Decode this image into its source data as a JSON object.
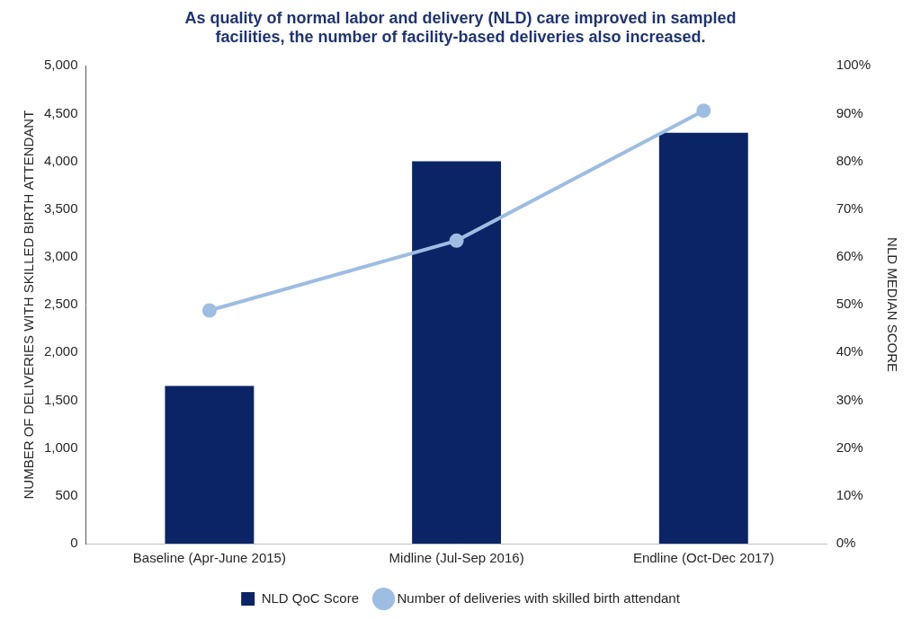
{
  "chart_data": {
    "type": "bar",
    "title": [
      "As quality of normal labor and delivery (NLD) care improved in sampled",
      "facilities, the number of facility-based deliveries also increased."
    ],
    "categories": [
      "Baseline (Apr-June 2015)",
      "Midline (Jul-Sep 2016)",
      "Endline (Oct-Dec 2017)"
    ],
    "series": [
      {
        "name": "NLD QoC Score",
        "type": "bar",
        "color": "#0b2466",
        "axis": "y2",
        "values": [
          33,
          80,
          86
        ]
      },
      {
        "name": "Number of deliveries with skilled birth attendant",
        "type": "line",
        "color": "#9dbde2",
        "marker": "circle",
        "line_style": "solid",
        "values": [
          2440,
          3170,
          4530
        ]
      }
    ],
    "ylabel": "NUMBER OF DELIVERIES WITH SKILLED BIRTH ATTENDANT",
    "y2label": "NLD MEDIAN SCORE",
    "ylim": [
      0,
      5000
    ],
    "yticks": [
      0,
      500,
      {
        "value": 1000,
        "label": "1,000"
      },
      {
        "value": 1500,
        "label": "1,500"
      },
      {
        "value": 2000,
        "label": "2,000"
      },
      {
        "value": 2500,
        "label": "2,500"
      },
      {
        "value": 3000,
        "label": "3,000"
      },
      {
        "value": 3500,
        "label": "3,500"
      },
      {
        "value": 4000,
        "label": "4,000"
      },
      {
        "value": 4500,
        "label": "4,500"
      },
      {
        "value": 5000,
        "label": "5,000"
      }
    ],
    "y2lim": [
      0,
      100
    ],
    "y2ticks": [
      {
        "value": 0,
        "label": "0%"
      },
      {
        "value": 10,
        "label": "10%"
      },
      {
        "value": 20,
        "label": "20%"
      },
      {
        "value": 30,
        "label": "30%"
      },
      {
        "value": 40,
        "label": "40%"
      },
      {
        "value": 50,
        "label": "50%"
      },
      {
        "value": 60,
        "label": "60%"
      },
      {
        "value": 70,
        "label": "70%"
      },
      {
        "value": 80,
        "label": "80%"
      },
      {
        "value": 90,
        "label": "90%"
      },
      {
        "value": 100,
        "label": "100%"
      }
    ],
    "grid": false,
    "legend": "bottom"
  }
}
